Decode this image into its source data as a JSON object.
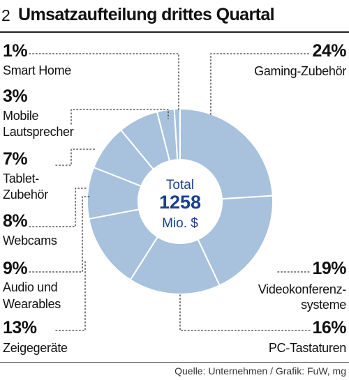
{
  "header": {
    "figure_number": "2",
    "title": "Umsatzaufteilung drittes Quartal"
  },
  "chart_data": {
    "type": "pie",
    "title": "Umsatzaufteilung drittes Quartal",
    "center_label": {
      "top": "Total",
      "value": "1258",
      "unit": "Mio. $"
    },
    "total": 1258,
    "slices": [
      {
        "label_lines": [
          "Gaming-Zubehör"
        ],
        "percent_label": "24%",
        "value": 24
      },
      {
        "label_lines": [
          "Videokonferenz-",
          "systeme"
        ],
        "percent_label": "19%",
        "value": 19
      },
      {
        "label_lines": [
          "PC-Tastaturen"
        ],
        "percent_label": "16%",
        "value": 16
      },
      {
        "label_lines": [
          "Zeigegeräte"
        ],
        "percent_label": "13%",
        "value": 13
      },
      {
        "label_lines": [
          "Audio und",
          "Wearables"
        ],
        "percent_label": "9%",
        "value": 9
      },
      {
        "label_lines": [
          "Webcams"
        ],
        "percent_label": "8%",
        "value": 8
      },
      {
        "label_lines": [
          "Tablet-",
          "Zubehör"
        ],
        "percent_label": "7%",
        "value": 7
      },
      {
        "label_lines": [
          "Mobile",
          "Lautsprecher"
        ],
        "percent_label": "3%",
        "value": 3
      },
      {
        "label_lines": [
          "Smart Home"
        ],
        "percent_label": "1%",
        "value": 1
      }
    ],
    "colors": {
      "slice_fill": "#a8c2dd",
      "slice_edge": "#ffffff",
      "center_text": "#1b3f8f",
      "leader": "#333333"
    }
  },
  "footer": {
    "source": "Quelle: Unternehmen / Grafik: FuW, mg"
  }
}
